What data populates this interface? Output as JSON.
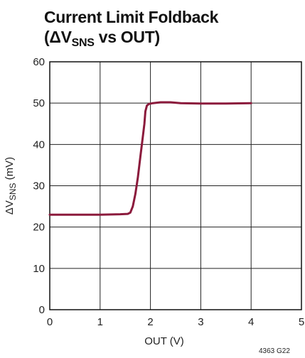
{
  "chart_data": {
    "type": "line",
    "title": {
      "line1": "Current Limit Foldback",
      "line2_open": "(ΔV",
      "line2_sub": "SNS",
      "line2_close": " vs OUT)"
    },
    "xlabel": "OUT (V)",
    "ylabel": {
      "main": "ΔV",
      "sub": "SNS",
      "unit": " (mV)"
    },
    "xlim": [
      0,
      5
    ],
    "ylim": [
      0,
      60
    ],
    "x_ticks": [
      0,
      1,
      2,
      3,
      4,
      5
    ],
    "y_ticks": [
      0,
      10,
      20,
      30,
      40,
      50,
      60
    ],
    "grid": true,
    "legend": "none",
    "colors": {
      "series": "#8b1a3c",
      "grid": "#222222",
      "frame": "#111111"
    },
    "series": [
      {
        "x": [
          0,
          0.5,
          1.0,
          1.4,
          1.55,
          1.6,
          1.65,
          1.7,
          1.75,
          1.8,
          1.85,
          1.88,
          1.9,
          1.93,
          1.97,
          2.05,
          2.2,
          2.4,
          2.6,
          3.0,
          3.5,
          4.0
        ],
        "values": [
          23,
          23,
          23,
          23.1,
          23.2,
          23.5,
          25,
          28,
          32,
          37,
          42,
          45,
          48,
          49.4,
          49.8,
          50.0,
          50.2,
          50.2,
          50.0,
          49.9,
          49.9,
          50.0
        ]
      }
    ],
    "footnote": "4363 G22"
  }
}
